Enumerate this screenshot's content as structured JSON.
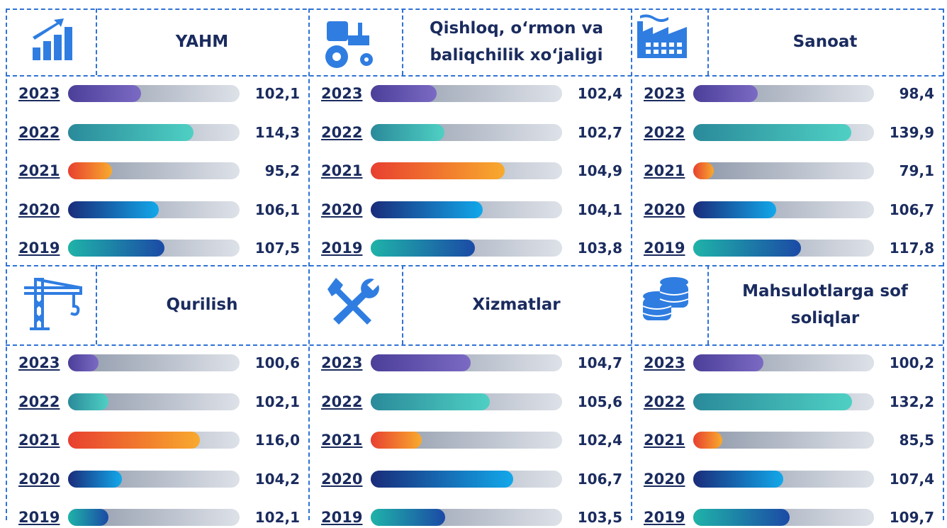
{
  "chart_data": [
    {
      "type": "bar",
      "title": "YAHM",
      "categories": [
        "2023",
        "2022",
        "2021",
        "2020",
        "2019"
      ],
      "values": [
        102.1,
        114.3,
        95.2,
        106.1,
        107.5
      ],
      "value_labels": [
        "102,1",
        "114,3",
        "95,2",
        "106,1",
        "107,5"
      ],
      "xlim": [
        85,
        125
      ],
      "colors": [
        [
          "#4b3f99",
          "#7b6ac4"
        ],
        [
          "#2a8a9a",
          "#4fd0c4"
        ],
        [
          "#e8402f",
          "#f8aa2e"
        ],
        [
          "#1a2c7a",
          "#12a8ea"
        ],
        [
          "#1fb3a8",
          "#1b4aa6"
        ]
      ]
    },
    {
      "type": "bar",
      "title": "Qishloq, o‘rmon va baliqchilik xo‘jaligi",
      "categories": [
        "2023",
        "2022",
        "2021",
        "2020",
        "2019"
      ],
      "values": [
        102.4,
        102.7,
        104.9,
        104.1,
        103.8
      ],
      "value_labels": [
        "102,4",
        "102,7",
        "104,9",
        "104,1",
        "103,8"
      ],
      "xlim": [
        100,
        107
      ],
      "colors": [
        [
          "#4b3f99",
          "#7b6ac4"
        ],
        [
          "#2a8a9a",
          "#4fd0c4"
        ],
        [
          "#e8402f",
          "#f8aa2e"
        ],
        [
          "#1a2c7a",
          "#12a8ea"
        ],
        [
          "#1fb3a8",
          "#1b4aa6"
        ]
      ]
    },
    {
      "type": "bar",
      "title": "Sanoat",
      "categories": [
        "2023",
        "2022",
        "2021",
        "2020",
        "2019"
      ],
      "values": [
        98.4,
        139.9,
        79.1,
        106.7,
        117.8
      ],
      "value_labels": [
        "98,4",
        "139,9",
        "79,1",
        "106,7",
        "117,8"
      ],
      "xlim": [
        70,
        150
      ],
      "colors": [
        [
          "#4b3f99",
          "#7b6ac4"
        ],
        [
          "#2a8a9a",
          "#4fd0c4"
        ],
        [
          "#e8402f",
          "#f8aa2e"
        ],
        [
          "#1a2c7a",
          "#12a8ea"
        ],
        [
          "#1fb3a8",
          "#1b4aa6"
        ]
      ]
    },
    {
      "type": "bar",
      "title": "Qurilish",
      "categories": [
        "2023",
        "2022",
        "2021",
        "2020",
        "2019"
      ],
      "values": [
        100.6,
        102.1,
        116.0,
        104.2,
        102.1
      ],
      "value_labels": [
        "100,6",
        "102,1",
        "116,0",
        "104,2",
        "102,1"
      ],
      "xlim": [
        96,
        122
      ],
      "colors": [
        [
          "#4b3f99",
          "#7b6ac4"
        ],
        [
          "#2a8a9a",
          "#4fd0c4"
        ],
        [
          "#e8402f",
          "#f8aa2e"
        ],
        [
          "#1a2c7a",
          "#12a8ea"
        ],
        [
          "#1fb3a8",
          "#1b4aa6"
        ]
      ]
    },
    {
      "type": "bar",
      "title": "Xizmatlar",
      "categories": [
        "2023",
        "2022",
        "2021",
        "2020",
        "2019"
      ],
      "values": [
        104.7,
        105.6,
        102.4,
        106.7,
        103.5
      ],
      "value_labels": [
        "104,7",
        "105,6",
        "102,4",
        "106,7",
        "103,5"
      ],
      "xlim": [
        100,
        109
      ],
      "colors": [
        [
          "#4b3f99",
          "#7b6ac4"
        ],
        [
          "#2a8a9a",
          "#4fd0c4"
        ],
        [
          "#e8402f",
          "#f8aa2e"
        ],
        [
          "#1a2c7a",
          "#12a8ea"
        ],
        [
          "#1fb3a8",
          "#1b4aa6"
        ]
      ]
    },
    {
      "type": "bar",
      "title": "Mahsulotlarga sof soliqlar",
      "categories": [
        "2023",
        "2022",
        "2021",
        "2020",
        "2019"
      ],
      "values": [
        100.2,
        132.2,
        85.5,
        107.4,
        109.7
      ],
      "value_labels": [
        "100,2",
        "132,2",
        "85,5",
        "107,4",
        "109,7"
      ],
      "xlim": [
        75,
        140
      ],
      "colors": [
        [
          "#4b3f99",
          "#7b6ac4"
        ],
        [
          "#2a8a9a",
          "#4fd0c4"
        ],
        [
          "#e8402f",
          "#f8aa2e"
        ],
        [
          "#1a2c7a",
          "#12a8ea"
        ],
        [
          "#1fb3a8",
          "#1b4aa6"
        ]
      ]
    }
  ]
}
